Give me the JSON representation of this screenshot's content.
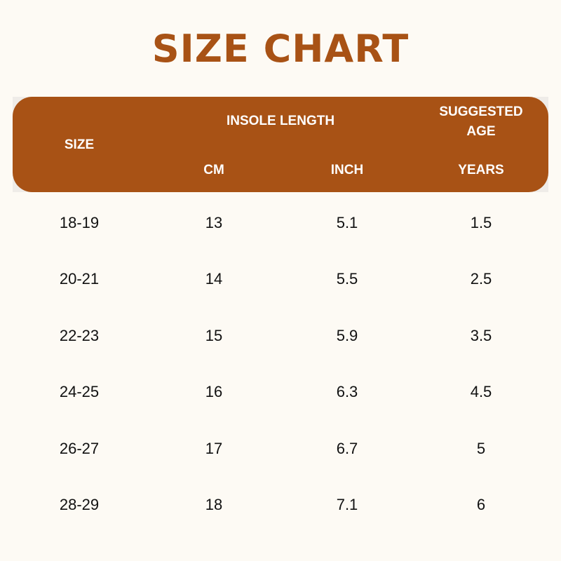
{
  "title": "SIZE CHART",
  "colors": {
    "accent": "#a85215",
    "background": "#fdfaf4"
  },
  "header": {
    "size": "SIZE",
    "insole_length": "INSOLE LENGTH",
    "suggested_age_line1": "SUGGESTED",
    "suggested_age_line2": "AGE",
    "cm": "CM",
    "inch": "INCH",
    "years": "YEARS"
  },
  "chart_data": {
    "type": "table",
    "title": "SIZE CHART",
    "columns": [
      "SIZE",
      "CM",
      "INCH",
      "YEARS"
    ],
    "rows": [
      [
        "18-19",
        "13",
        "5.1",
        "1.5"
      ],
      [
        "20-21",
        "14",
        "5.5",
        "2.5"
      ],
      [
        "22-23",
        "15",
        "5.9",
        "3.5"
      ],
      [
        "24-25",
        "16",
        "6.3",
        "4.5"
      ],
      [
        "26-27",
        "17",
        "6.7",
        "5"
      ],
      [
        "28-29",
        "18",
        "7.1",
        "6"
      ]
    ]
  }
}
